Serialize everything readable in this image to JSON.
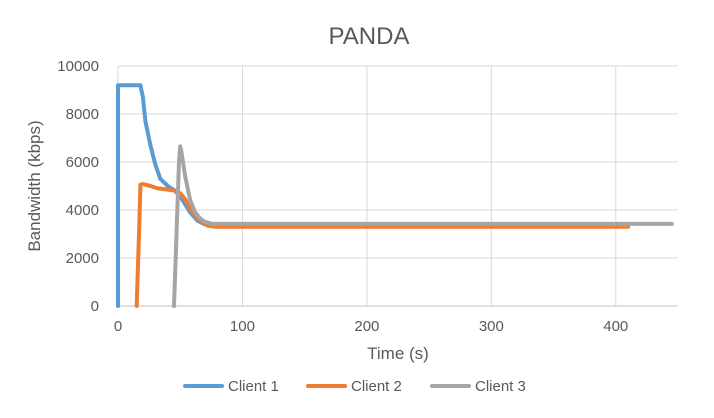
{
  "chart_data": {
    "type": "line",
    "title": "PANDA",
    "xlabel": "Time (s)",
    "ylabel": "Bandwidth (kbps)",
    "xlim": [
      0,
      450
    ],
    "ylim": [
      0,
      10000
    ],
    "xticks": [
      0,
      100,
      200,
      300,
      400
    ],
    "yticks": [
      0,
      2000,
      4000,
      6000,
      8000,
      10000
    ],
    "grid": true,
    "legend_position": "bottom",
    "series": [
      {
        "name": "Client 1",
        "color": "#5B9BD5",
        "x": [
          0,
          0,
          2,
          10,
          18,
          20,
          22,
          26,
          30,
          34,
          40,
          46,
          52,
          58,
          64,
          70,
          76,
          90,
          150,
          250,
          350,
          388
        ],
        "y": [
          0,
          9200,
          9200,
          9200,
          9200,
          8700,
          7700,
          6700,
          5900,
          5300,
          5000,
          4800,
          4400,
          3900,
          3550,
          3400,
          3350,
          3350,
          3350,
          3350,
          3330,
          3330
        ]
      },
      {
        "name": "Client 2",
        "color": "#ED7D31",
        "x": [
          15,
          16,
          17,
          18,
          20,
          26,
          32,
          40,
          46,
          50,
          54,
          60,
          66,
          72,
          78,
          100,
          200,
          300,
          410
        ],
        "y": [
          0,
          1600,
          3200,
          5050,
          5080,
          5000,
          4900,
          4850,
          4800,
          4700,
          4450,
          3900,
          3550,
          3350,
          3300,
          3300,
          3300,
          3300,
          3300
        ]
      },
      {
        "name": "Client 3",
        "color": "#A5A5A5",
        "x": [
          45,
          47,
          49,
          50,
          51,
          54,
          58,
          62,
          66,
          70,
          76,
          90,
          150,
          250,
          350,
          445
        ],
        "y": [
          0,
          3000,
          6000,
          6650,
          6400,
          5400,
          4400,
          3900,
          3650,
          3500,
          3420,
          3420,
          3420,
          3420,
          3420,
          3420
        ]
      }
    ]
  }
}
